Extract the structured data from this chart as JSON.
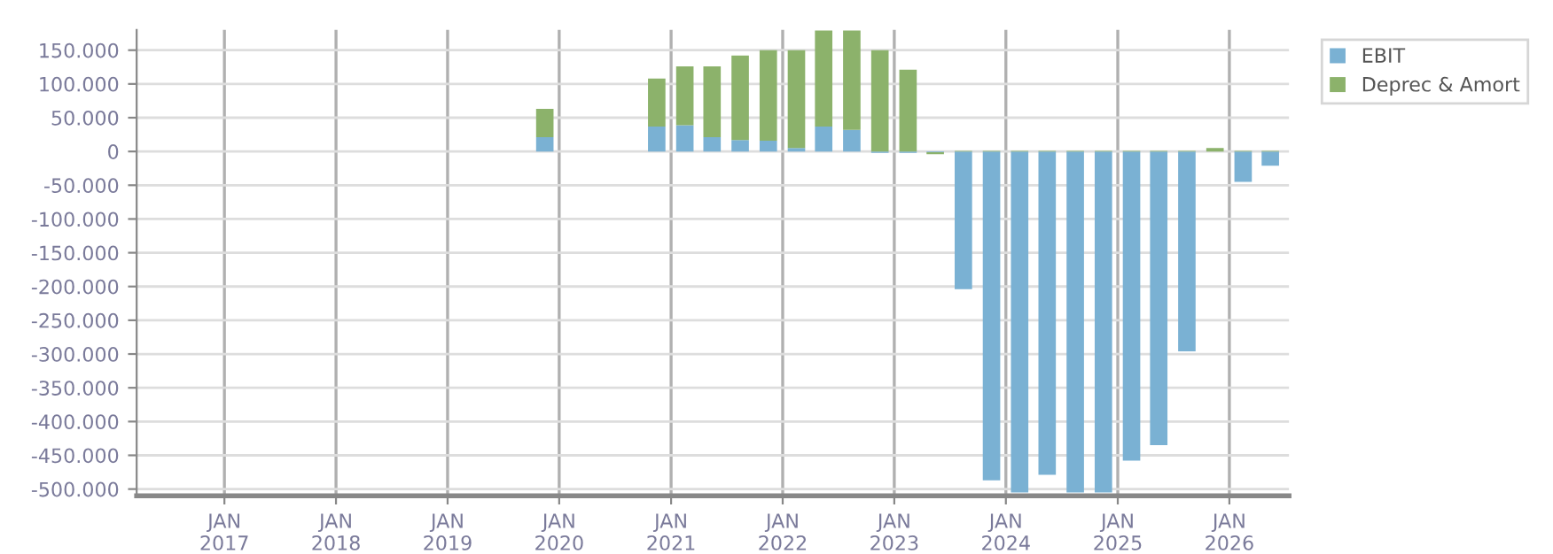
{
  "chart_data": {
    "type": "bar",
    "stacked": true,
    "x": [
      "2019-11-15",
      "2020-11-15",
      "2021-02-15",
      "2021-05-15",
      "2021-08-15",
      "2021-11-15",
      "2022-02-15",
      "2022-05-15",
      "2022-08-15",
      "2022-11-15",
      "2023-02-15",
      "2023-05-15",
      "2023-08-15",
      "2023-11-15",
      "2024-02-15",
      "2024-05-15",
      "2024-08-15",
      "2024-11-15",
      "2025-02-15",
      "2025-05-15",
      "2025-08-15",
      "2025-11-15",
      "2026-02-15",
      "2026-05-15"
    ],
    "series": [
      {
        "name": "EBIT",
        "color": "#7ab1d3",
        "values": [
          21000,
          37000,
          39000,
          21000,
          17000,
          16000,
          5000,
          37000,
          32000,
          -2000,
          -2000,
          -1000,
          -204000,
          -487000,
          -505000,
          -479000,
          -505000,
          -505000,
          -458000,
          -435000,
          -296000,
          0,
          -45000,
          -21000
        ]
      },
      {
        "name": "Deprec & Amort",
        "color": "#8cb26b",
        "values": [
          42000,
          71000,
          87000,
          105000,
          125000,
          134000,
          145000,
          142000,
          147000,
          150000,
          121000,
          -3000,
          1000,
          1000,
          1000,
          1000,
          1000,
          1000,
          1000,
          1000,
          1000,
          5000,
          1000,
          1000
        ]
      }
    ],
    "xlim": [
      "2016-03-20",
      "2026-07-15"
    ],
    "xticks": [
      {
        "value": "2017-01-01",
        "label": "JAN\n2017"
      },
      {
        "value": "2018-01-01",
        "label": "JAN\n2018"
      },
      {
        "value": "2019-01-01",
        "label": "JAN\n2019"
      },
      {
        "value": "2020-01-01",
        "label": "JAN\n2020"
      },
      {
        "value": "2021-01-01",
        "label": "JAN\n2021"
      },
      {
        "value": "2022-01-01",
        "label": "JAN\n2022"
      },
      {
        "value": "2023-01-01",
        "label": "JAN\n2023"
      },
      {
        "value": "2024-01-01",
        "label": "JAN\n2024"
      },
      {
        "value": "2025-01-01",
        "label": "JAN\n2025"
      },
      {
        "value": "2026-01-01",
        "label": "JAN\n2026"
      }
    ],
    "ylim": [
      -510000,
      180000
    ],
    "yticks": [
      {
        "value": 150000,
        "label": "150.000"
      },
      {
        "value": 100000,
        "label": "100.000"
      },
      {
        "value": 50000,
        "label": "50.000"
      },
      0,
      {
        "value": -50000,
        "label": "-50.000"
      },
      {
        "value": -100000,
        "label": "-100.000"
      },
      {
        "value": -150000,
        "label": "-150.000"
      },
      {
        "value": -200000,
        "label": "-200.000"
      },
      {
        "value": -250000,
        "label": "-250.000"
      },
      {
        "value": -300000,
        "label": "-300.000"
      },
      {
        "value": -350000,
        "label": "-350.000"
      },
      {
        "value": -400000,
        "label": "-400.000"
      },
      {
        "value": -450000,
        "label": "-450.000"
      },
      {
        "value": -500000,
        "label": "-500.000"
      }
    ],
    "grid": true,
    "legend": "top right"
  }
}
